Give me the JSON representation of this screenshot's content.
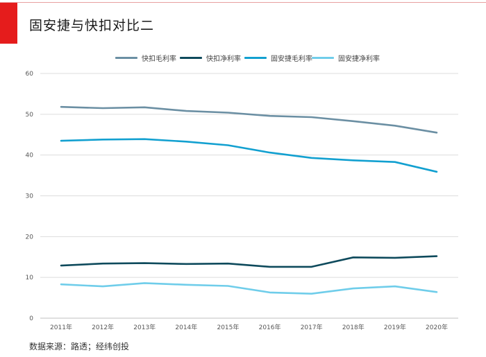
{
  "header": {
    "title": "固安捷与快扣对比二"
  },
  "footer": {
    "source": "数据来源：路透；经纬创投"
  },
  "colors": {
    "accent": "#e51c1c"
  },
  "chart_data": {
    "type": "line",
    "title": "固安捷与快扣对比二",
    "xlabel": "",
    "ylabel": "",
    "ylim": [
      0,
      60
    ],
    "yticks": [
      0,
      10,
      20,
      30,
      40,
      50,
      60
    ],
    "grid": true,
    "legend_position": "top",
    "categories": [
      "2011年",
      "2012年",
      "2013年",
      "2014年",
      "2015年",
      "2016年",
      "2017年",
      "2018年",
      "2019年",
      "2020年"
    ],
    "series": [
      {
        "name": "快扣毛利率",
        "color": "#6b8fa3",
        "values": [
          51.8,
          51.5,
          51.7,
          50.8,
          50.4,
          49.6,
          49.3,
          48.3,
          47.2,
          45.5
        ]
      },
      {
        "name": "快扣净利率",
        "color": "#0e4a5c",
        "values": [
          12.9,
          13.4,
          13.5,
          13.3,
          13.4,
          12.6,
          12.6,
          14.9,
          14.8,
          15.2
        ]
      },
      {
        "name": "固安捷毛利率",
        "color": "#12a0d0",
        "values": [
          43.5,
          43.8,
          43.9,
          43.3,
          42.4,
          40.6,
          39.3,
          38.7,
          38.3,
          35.9
        ]
      },
      {
        "name": "固安捷净利率",
        "color": "#6fcdea",
        "values": [
          8.3,
          7.8,
          8.6,
          8.2,
          7.9,
          6.3,
          6.0,
          7.3,
          7.8,
          6.4
        ]
      }
    ]
  }
}
